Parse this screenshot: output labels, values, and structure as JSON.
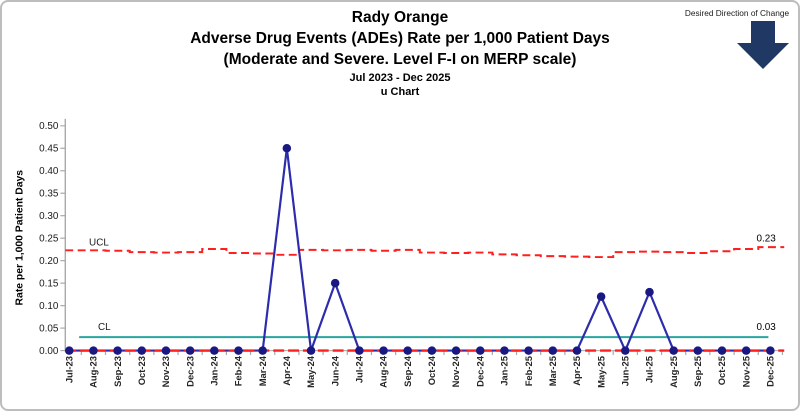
{
  "header": {
    "title_lines": [
      "Rady Orange",
      "Adverse Drug Events (ADEs) Rate per 1,000 Patient Days",
      "(Moderate and Severe. Level F-I on MERP scale)"
    ],
    "date_range": "Jul 2023 - Dec 2025",
    "chart_type_label": "u Chart"
  },
  "desired_direction": {
    "label": "Desired Direction of Change",
    "direction": "down",
    "arrow_color": "#1f3864"
  },
  "chart_data": {
    "type": "line",
    "subtype": "u-chart (SPC control chart)",
    "title": "Rady Orange Adverse Drug Events (ADEs) Rate per 1,000 Patient Days (Moderate and Severe. Level F-I on MERP scale)",
    "ylabel": "Rate per 1,000 Patient Days",
    "xlabel": "",
    "ylim": [
      0,
      0.5
    ],
    "ytick_labels": [
      "0.00",
      "0.05",
      "0.10",
      "0.15",
      "0.20",
      "0.25",
      "0.30",
      "0.35",
      "0.40",
      "0.45",
      "0.50"
    ],
    "grid": false,
    "legend_position": "none",
    "categories": [
      "Jul-23",
      "Aug-23",
      "Sep-23",
      "Oct-23",
      "Nov-23",
      "Dec-23",
      "Jan-24",
      "Feb-24",
      "Mar-24",
      "Apr-24",
      "May-24",
      "Jun-24",
      "Jul-24",
      "Aug-24",
      "Sep-24",
      "Oct-24",
      "Nov-24",
      "Dec-24",
      "Jan-25",
      "Feb-25",
      "Mar-25",
      "Apr-25",
      "May-25",
      "Jun-25",
      "Jul-25",
      "Aug-25",
      "Sep-25",
      "Oct-25",
      "Nov-25",
      "Dec-25"
    ],
    "series": [
      {
        "name": "ADE rate per 1,000 patient days",
        "style": "line-with-markers",
        "line_color": "#2c2cac",
        "marker_color": "#191984",
        "values": [
          0,
          0,
          0,
          0,
          0,
          0,
          0,
          0,
          0,
          0.45,
          0,
          0.15,
          0,
          0,
          0,
          0,
          0,
          0,
          0,
          0,
          0,
          0,
          0.12,
          0,
          0.13,
          0,
          0,
          0,
          0,
          0
        ]
      },
      {
        "name": "UCL",
        "style": "stepped-dashed",
        "color": "#ff1f1f",
        "values": [
          0.223,
          0.223,
          0.222,
          0.219,
          0.218,
          0.219,
          0.226,
          0.217,
          0.216,
          0.213,
          0.224,
          0.223,
          0.224,
          0.222,
          0.224,
          0.218,
          0.217,
          0.218,
          0.214,
          0.212,
          0.21,
          0.209,
          0.208,
          0.219,
          0.22,
          0.219,
          0.217,
          0.221,
          0.226,
          0.23
        ]
      },
      {
        "name": "CL",
        "style": "solid-line",
        "color": "#29a5a0",
        "value": 0.03
      },
      {
        "name": "LCL",
        "style": "dashed-line",
        "color": "#ff1f1f",
        "value": 0
      }
    ],
    "annotations": {
      "ucl_label": "UCL",
      "cl_label": "CL",
      "ucl_end_value": "0.23",
      "cl_end_value": "0.03"
    }
  }
}
